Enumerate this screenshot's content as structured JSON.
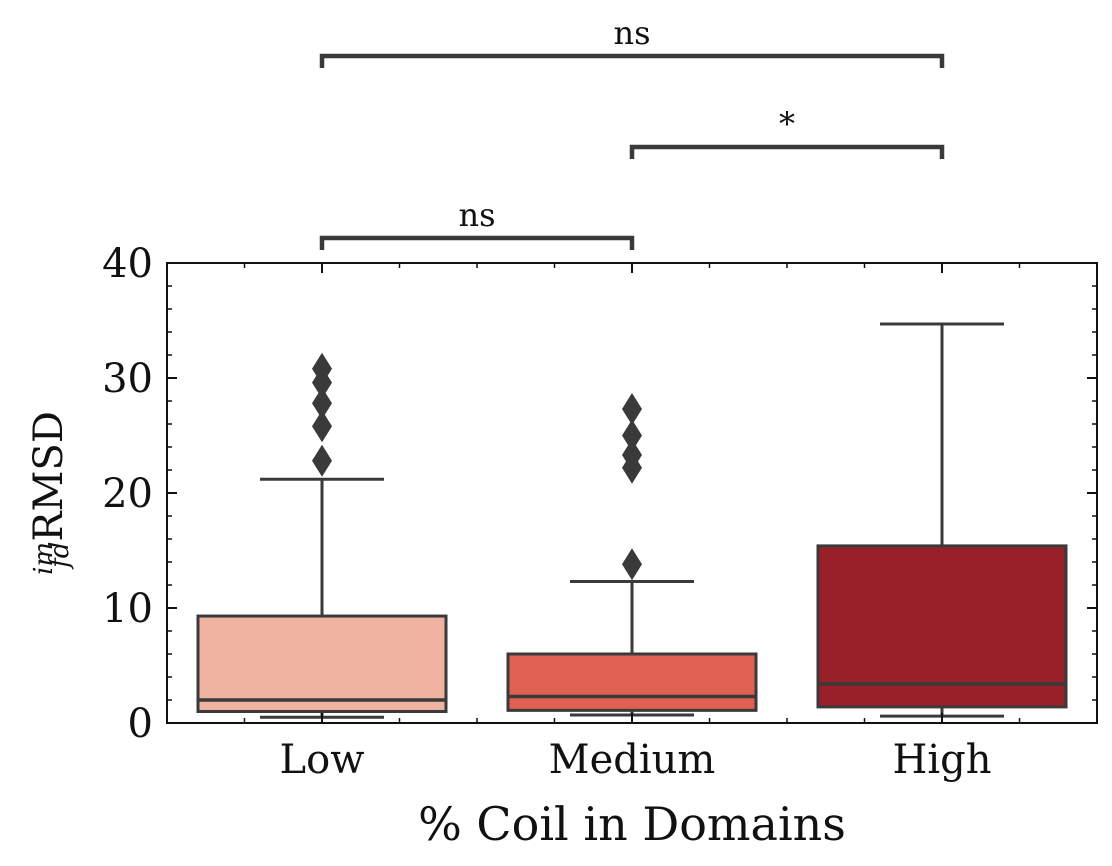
{
  "chart_data": {
    "type": "box",
    "title": "",
    "xlabel": "% Coil in Domains",
    "ylabel": {
      "main": "RMSD",
      "sup": "im",
      "sub": "fd"
    },
    "ylim": [
      0,
      40
    ],
    "yticks": [
      0,
      10,
      20,
      30,
      40
    ],
    "grid": false,
    "categories": [
      "Low",
      "Medium",
      "High"
    ],
    "boxes": [
      {
        "category": "Low",
        "color": "#f0b3a1",
        "whislo": 0.5,
        "q1": 1.0,
        "median": 2.0,
        "q3": 9.3,
        "whishi": 21.2,
        "fliers": [
          22.8,
          25.8,
          27.8,
          29.6,
          30.8
        ]
      },
      {
        "category": "Medium",
        "color": "#de6152",
        "whislo": 0.7,
        "q1": 1.1,
        "median": 2.3,
        "q3": 6.0,
        "whishi": 12.3,
        "fliers": [
          13.8,
          22.2,
          23.3,
          25.0,
          27.3
        ]
      },
      {
        "category": "High",
        "color": "#991f29",
        "whislo": 0.6,
        "q1": 1.4,
        "median": 3.4,
        "q3": 15.4,
        "whishi": 34.7,
        "fliers": []
      }
    ],
    "annotations": [
      {
        "from": "Low",
        "to": "Medium",
        "label": "ns",
        "level": 0
      },
      {
        "from": "Medium",
        "to": "High",
        "label": "*",
        "level": 1
      },
      {
        "from": "Low",
        "to": "High",
        "label": "ns",
        "level": 2
      }
    ]
  }
}
